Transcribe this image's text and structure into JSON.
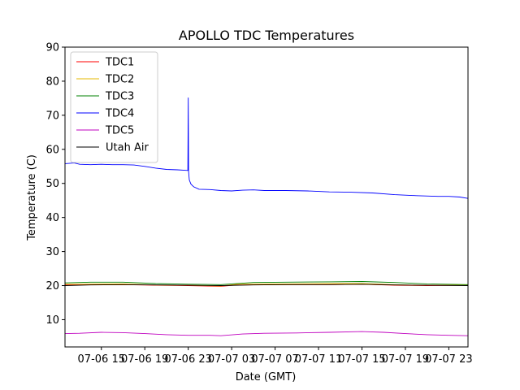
{
  "chart_data": {
    "type": "line",
    "title": "APOLLO TDC Temperatures",
    "xlabel": "Date (GMT)",
    "ylabel": "Temperature (C)",
    "ylim": [
      2,
      90
    ],
    "xlim": [
      "07-06 11:39",
      "07-08 00:46"
    ],
    "x_ticks": [
      "07-06 15",
      "07-06 19",
      "07-06 23",
      "07-07 03",
      "07-07 07",
      "07-07 11",
      "07-07 15",
      "07-07 19",
      "07-07 23"
    ],
    "x_tick_times": [
      "07-06 15:00",
      "07-06 19:00",
      "07-06 23:00",
      "07-07 03:00",
      "07-07 07:00",
      "07-07 11:00",
      "07-07 15:00",
      "07-07 19:00",
      "07-07 23:00"
    ],
    "y_ticks": [
      10,
      20,
      30,
      40,
      50,
      60,
      70,
      80,
      90
    ],
    "grid": false,
    "legend": "top-left",
    "series": [
      {
        "name": "TDC1",
        "color": "#ff0000",
        "x": [
          "07-06 11:39",
          "07-06 17:00",
          "07-06 20:00",
          "07-06 23:00",
          "07-07 02:00",
          "07-07 03:30",
          "07-07 08:00",
          "07-07 12:00",
          "07-07 15:00",
          "07-07 18:00",
          "07-07 21:00",
          "07-08 00:46"
        ],
        "y": [
          20.2,
          20.3,
          20.1,
          20.0,
          19.8,
          20.2,
          20.3,
          20.3,
          20.4,
          20.1,
          20.0,
          20.1
        ]
      },
      {
        "name": "TDC2",
        "color": "#e6b800",
        "x": [
          "07-06 11:39",
          "07-06 17:00",
          "07-06 20:00",
          "07-06 23:00",
          "07-07 02:00",
          "07-07 03:30",
          "07-07 08:00",
          "07-07 12:00",
          "07-07 15:00",
          "07-07 18:00",
          "07-07 21:00",
          "07-08 00:46"
        ],
        "y": [
          20.4,
          20.5,
          20.2,
          20.1,
          19.9,
          20.4,
          20.5,
          20.6,
          20.6,
          20.3,
          20.1,
          20.2
        ]
      },
      {
        "name": "TDC3",
        "color": "#008000",
        "x": [
          "07-06 11:39",
          "07-06 14:00",
          "07-06 17:00",
          "07-06 20:00",
          "07-06 23:00",
          "07-07 02:00",
          "07-07 05:00",
          "07-07 08:00",
          "07-07 12:00",
          "07-07 15:00",
          "07-07 18:00",
          "07-07 21:00",
          "07-08 00:46"
        ],
        "y": [
          20.8,
          21.0,
          21.0,
          20.6,
          20.4,
          20.3,
          20.9,
          21.0,
          21.1,
          21.2,
          20.9,
          20.5,
          20.3
        ]
      },
      {
        "name": "TDC4",
        "color": "#0000ff",
        "x": [
          "07-06 11:39",
          "07-06 12:30",
          "07-06 13:00",
          "07-06 14:00",
          "07-06 15:00",
          "07-06 16:00",
          "07-06 17:00",
          "07-06 18:00",
          "07-06 19:00",
          "07-06 20:00",
          "07-06 21:00",
          "07-06 22:00",
          "07-06 22:58",
          "07-06 23:00",
          "07-06 23:02",
          "07-06 23:06",
          "07-06 23:15",
          "07-06 23:30",
          "07-07 00:00",
          "07-07 01:00",
          "07-07 02:00",
          "07-07 03:00",
          "07-07 04:00",
          "07-07 05:00",
          "07-07 06:00",
          "07-07 08:00",
          "07-07 10:00",
          "07-07 12:00",
          "07-07 14:00",
          "07-07 16:00",
          "07-07 18:00",
          "07-07 20:00",
          "07-07 22:00",
          "07-07 23:00",
          "07-08 00:00",
          "07-08 00:46"
        ],
        "y": [
          55.8,
          56.0,
          55.6,
          55.5,
          55.6,
          55.5,
          55.5,
          55.4,
          55.0,
          54.5,
          54.1,
          54.0,
          53.8,
          75.2,
          53.5,
          51.0,
          49.8,
          49.0,
          48.3,
          48.2,
          47.9,
          47.8,
          48.0,
          48.1,
          47.9,
          47.9,
          47.8,
          47.5,
          47.4,
          47.2,
          46.7,
          46.4,
          46.2,
          46.2,
          46.0,
          45.6
        ]
      },
      {
        "name": "TDC5",
        "color": "#bf00bf",
        "x": [
          "07-06 11:39",
          "07-06 13:00",
          "07-06 15:00",
          "07-06 17:00",
          "07-06 19:00",
          "07-06 21:00",
          "07-06 23:00",
          "07-07 01:00",
          "07-07 02:00",
          "07-07 04:00",
          "07-07 06:00",
          "07-07 09:00",
          "07-07 12:00",
          "07-07 15:00",
          "07-07 17:00",
          "07-07 19:00",
          "07-07 21:00",
          "07-07 23:00",
          "07-08 00:46"
        ],
        "y": [
          5.9,
          6.0,
          6.3,
          6.2,
          5.9,
          5.6,
          5.4,
          5.4,
          5.3,
          5.8,
          6.0,
          6.1,
          6.3,
          6.5,
          6.3,
          5.9,
          5.6,
          5.4,
          5.3
        ]
      },
      {
        "name": "Utah Air",
        "color": "#000000",
        "x": [
          "07-06 11:39",
          "07-06 14:00",
          "07-06 17:00",
          "07-06 20:00",
          "07-06 23:00",
          "07-07 02:00",
          "07-07 05:00",
          "07-07 08:00",
          "07-07 12:00",
          "07-07 15:00",
          "07-07 18:00",
          "07-07 21:00",
          "07-08 00:46"
        ],
        "y": [
          20.0,
          20.2,
          20.3,
          20.2,
          20.1,
          20.0,
          20.2,
          20.3,
          20.3,
          20.4,
          20.2,
          20.1,
          20.0
        ]
      }
    ]
  }
}
